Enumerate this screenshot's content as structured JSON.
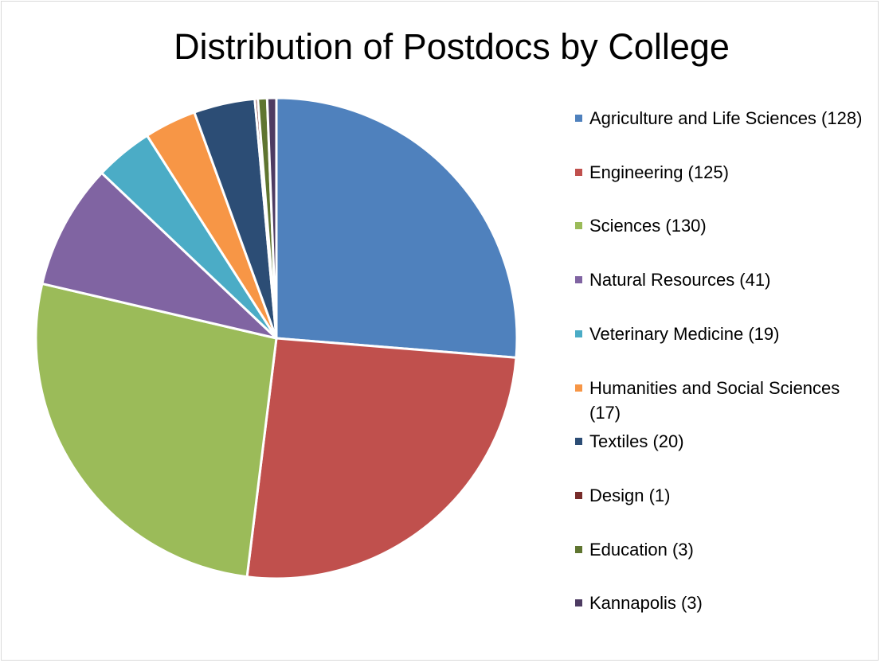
{
  "chart_data": {
    "type": "pie",
    "title": "Distribution of Postdocs by College",
    "categories": [
      "Agriculture and Life Sciences (128)",
      "Engineering (125)",
      "Sciences (130)",
      "Natural Resources (41)",
      "Veterinary Medicine (19)",
      "Humanities and Social Sciences (17)",
      "Textiles (20)",
      "Design (1)",
      "Education (3)",
      "Kannapolis (3)"
    ],
    "values": [
      128,
      125,
      130,
      41,
      19,
      17,
      20,
      1,
      3,
      3
    ],
    "colors": [
      "#4f81bd",
      "#c0504d",
      "#9bbb59",
      "#8064a2",
      "#4bacc6",
      "#f79646",
      "#2c4d75",
      "#772c2a",
      "#5f7530",
      "#4d3b62"
    ],
    "legend": "right"
  }
}
